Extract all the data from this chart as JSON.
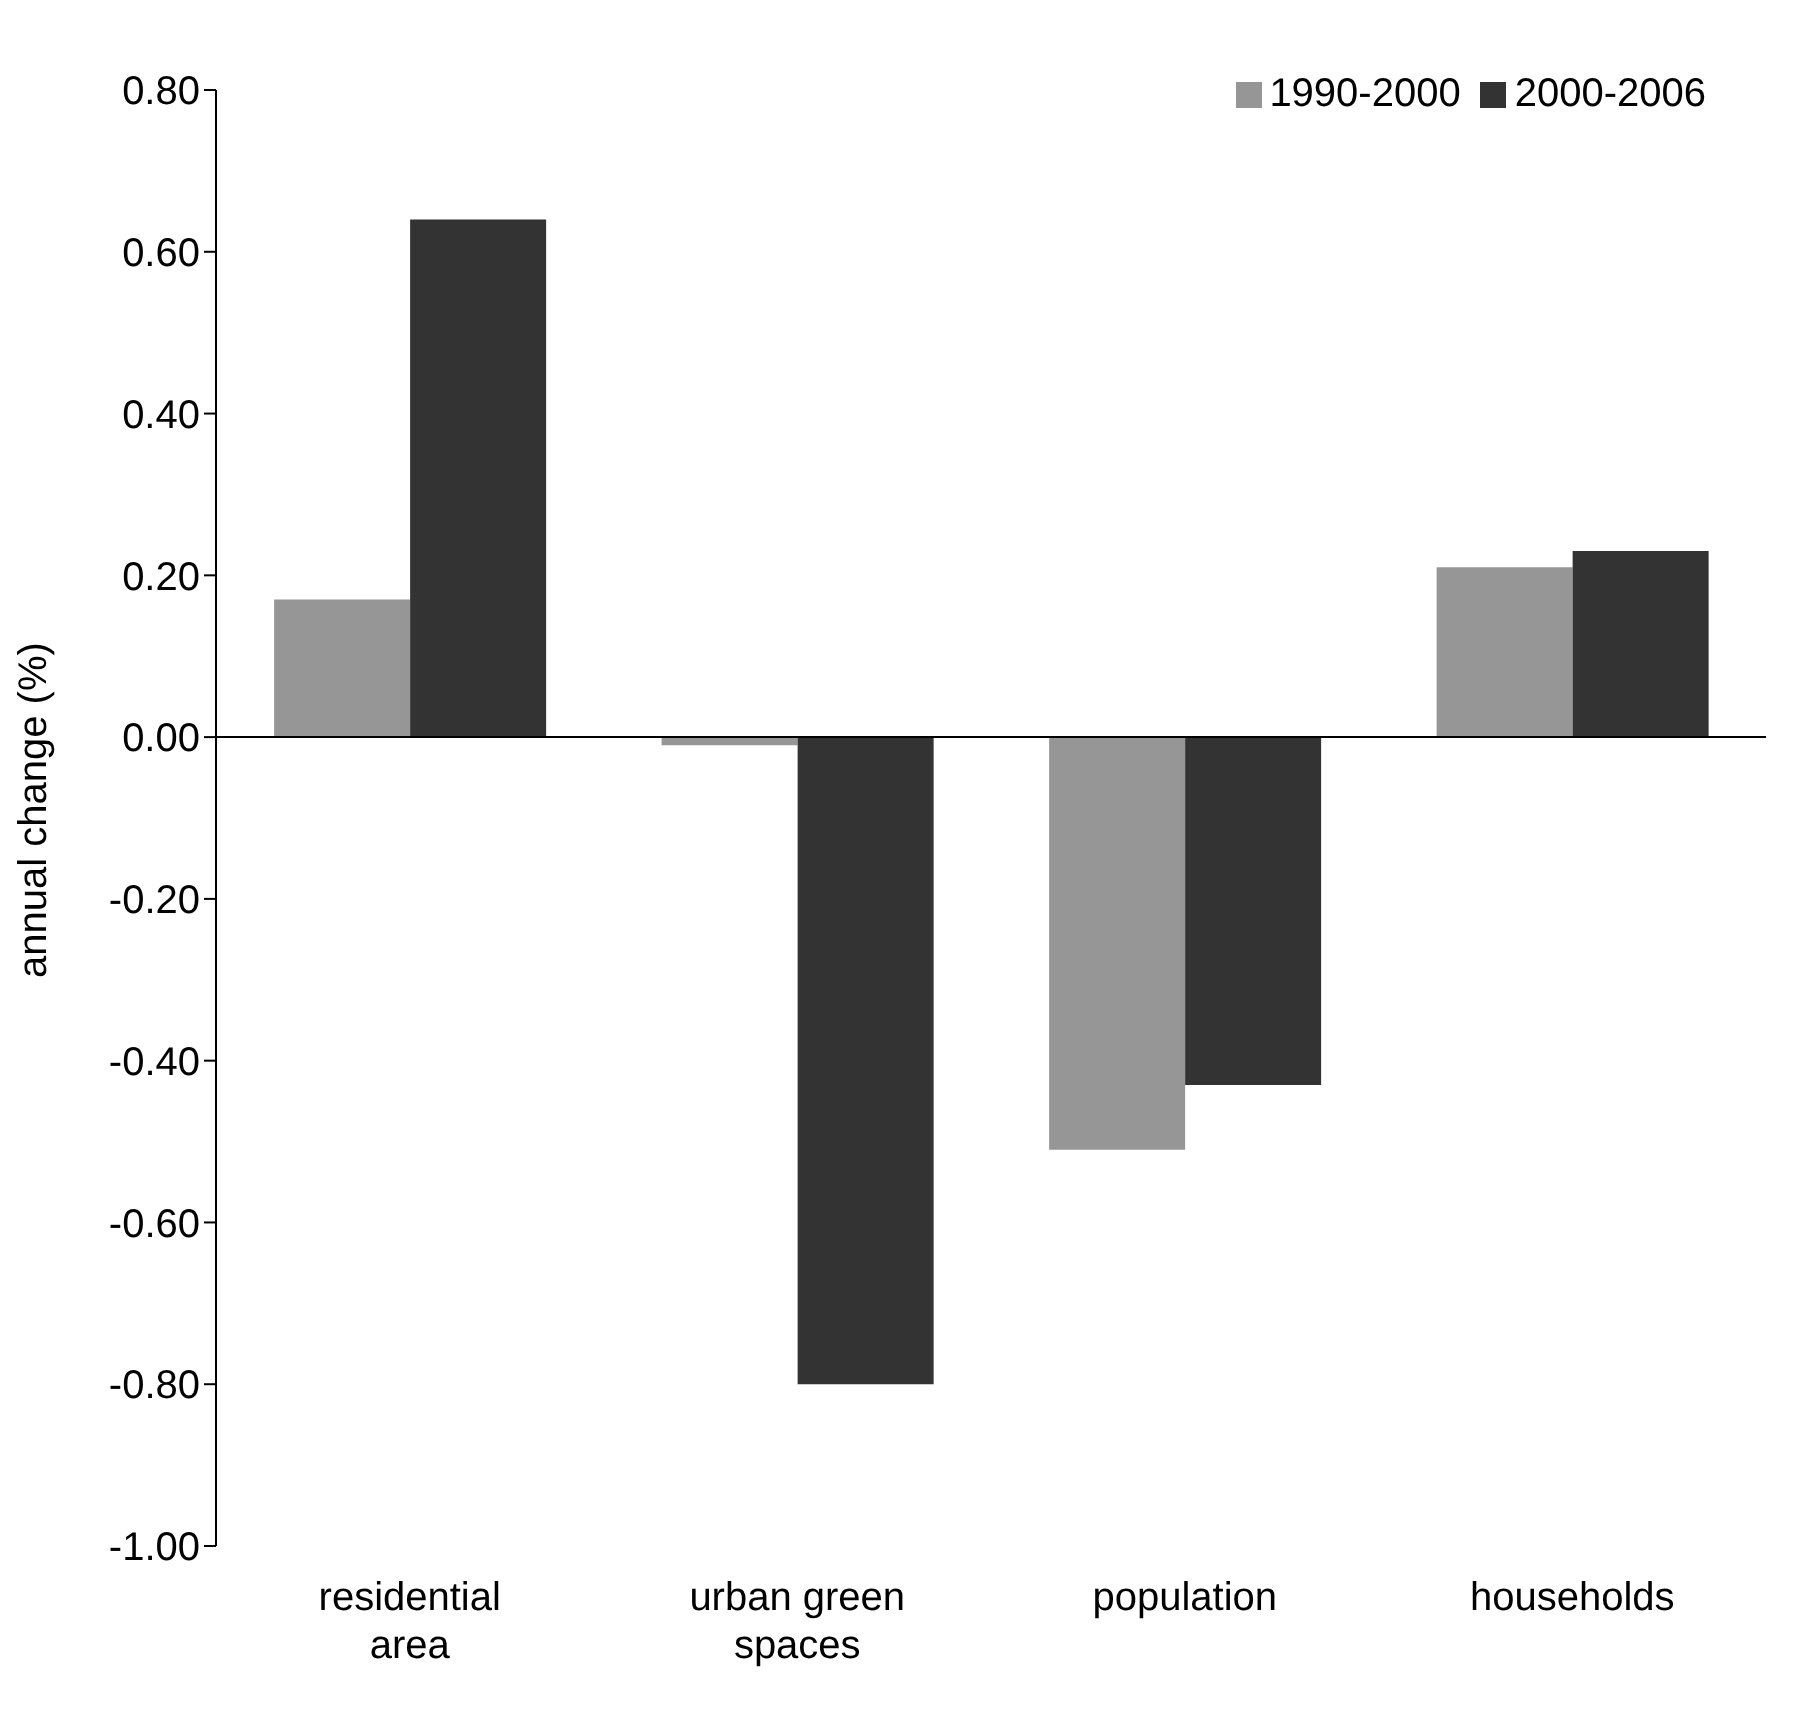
{
  "chart_data": {
    "type": "bar",
    "ylabel": "annual change (%)",
    "categories": [
      "residential area",
      "urban green spaces",
      "population",
      "households"
    ],
    "series": [
      {
        "name": "1990-2000",
        "color": "#969696",
        "values": [
          0.17,
          -0.01,
          -0.51,
          0.21
        ]
      },
      {
        "name": "2000-2006",
        "color": "#333333",
        "values": [
          0.64,
          -0.8,
          -0.43,
          0.23
        ]
      }
    ],
    "ylim": [
      -1.0,
      0.8
    ],
    "yticks": [
      {
        "value": -1.0,
        "label": "-1.00"
      },
      {
        "value": -0.8,
        "label": "-0.80"
      },
      {
        "value": -0.6,
        "label": "-0.60"
      },
      {
        "value": -0.4,
        "label": "-0.40"
      },
      {
        "value": -0.2,
        "label": "-0.20"
      },
      {
        "value": 0,
        "label": "0.00"
      },
      {
        "value": 0.2,
        "label": "0.20"
      },
      {
        "value": 0.4,
        "label": "0.40"
      },
      {
        "value": 0.6,
        "label": "0.60"
      },
      {
        "value": 0.8,
        "label": "0.80"
      }
    ],
    "legend": "top right"
  }
}
